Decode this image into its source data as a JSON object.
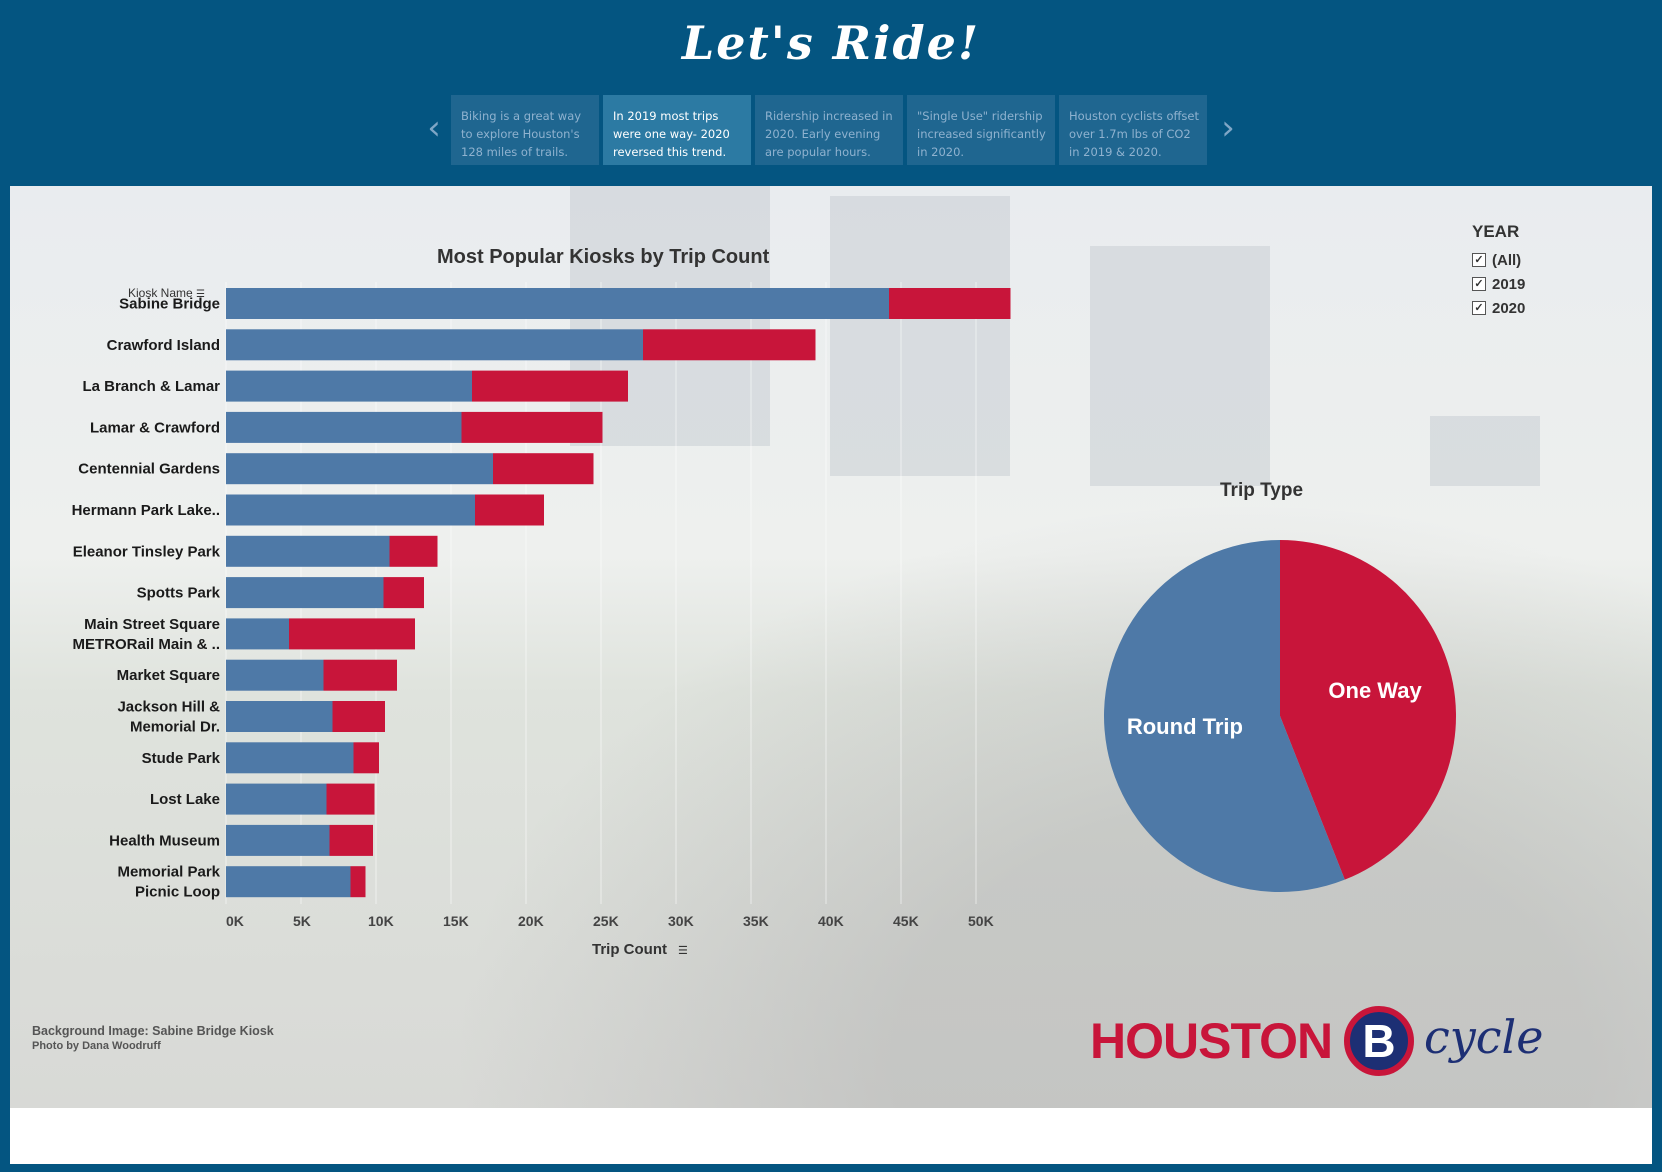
{
  "header": {
    "title": "Let's Ride!"
  },
  "story": {
    "prev_icon": "chevron-left-icon",
    "next_icon": "chevron-right-icon",
    "points": [
      {
        "text": "Biking is a great way to explore Houston's 128 miles of trails.",
        "active": false
      },
      {
        "text": "In 2019 most trips were one way- 2020 reversed this trend.",
        "active": true
      },
      {
        "text": "Ridership increased in 2020. Early evening are popular hours.",
        "active": false
      },
      {
        "text": "\"Single Use\" ridership increased significantly in 2020.",
        "active": false
      },
      {
        "text": "Houston cyclists offset over 1.7m  lbs of CO2 in 2019 & 2020.",
        "active": false
      }
    ]
  },
  "filter": {
    "title": "YEAR",
    "options": [
      {
        "label": "(All)",
        "checked": true
      },
      {
        "label": "2019",
        "checked": true
      },
      {
        "label": "2020",
        "checked": true
      }
    ]
  },
  "bar_header": {
    "kiosk_label": "Kiosk Name",
    "sort_icon": "sort-icon"
  },
  "credits": {
    "line1": "Background Image: Sabine Bridge Kiosk",
    "line2": "Photo by Dana Woodruff"
  },
  "logo": {
    "houston": "HOUSTON",
    "b": "B",
    "cycle": "cycle"
  },
  "colors": {
    "round_trip": "#4e79a7",
    "one_way": "#c8153a",
    "header_bg": "#045581"
  },
  "chart_data": [
    {
      "type": "bar",
      "orientation": "horizontal",
      "stacked": true,
      "title": "Most Popular Kiosks by Trip Count",
      "xlabel": "Trip Count",
      "ylabel": "Kiosk Name",
      "xlim": [
        0,
        52000
      ],
      "xticks": [
        "0K",
        "5K",
        "10K",
        "15K",
        "20K",
        "25K",
        "30K",
        "35K",
        "40K",
        "45K",
        "50K"
      ],
      "categories": [
        [
          "Sabine Bridge"
        ],
        [
          "Crawford Island"
        ],
        [
          "La Branch & Lamar"
        ],
        [
          "Lamar & Crawford"
        ],
        [
          "Centennial Gardens"
        ],
        [
          "Hermann Park Lake.."
        ],
        [
          "Eleanor Tinsley Park"
        ],
        [
          "Spotts Park"
        ],
        [
          "Main Street Square",
          "METRORail Main & .."
        ],
        [
          "Market Square"
        ],
        [
          "Jackson Hill &",
          "Memorial Dr."
        ],
        [
          "Stude Park"
        ],
        [
          "Lost Lake"
        ],
        [
          "Health Museum"
        ],
        [
          "Memorial Park",
          "Picnic Loop"
        ]
      ],
      "series": [
        {
          "color": "#4e79a7",
          "values": [
            44200,
            27800,
            16400,
            15700,
            17800,
            16600,
            10900,
            10500,
            4200,
            6500,
            7100,
            8500,
            6700,
            6900,
            8300
          ]
        },
        {
          "color": "#c8153a",
          "values": [
            8100,
            11500,
            10400,
            9400,
            6700,
            4600,
            3200,
            2700,
            8400,
            4900,
            3500,
            1700,
            3200,
            2900,
            1000
          ]
        }
      ]
    },
    {
      "type": "pie",
      "title": "Trip Type",
      "slices": [
        {
          "label": "One Way",
          "value": 44,
          "color": "#c8153a"
        },
        {
          "label": "Round Trip",
          "value": 56,
          "color": "#4e79a7"
        }
      ]
    }
  ]
}
